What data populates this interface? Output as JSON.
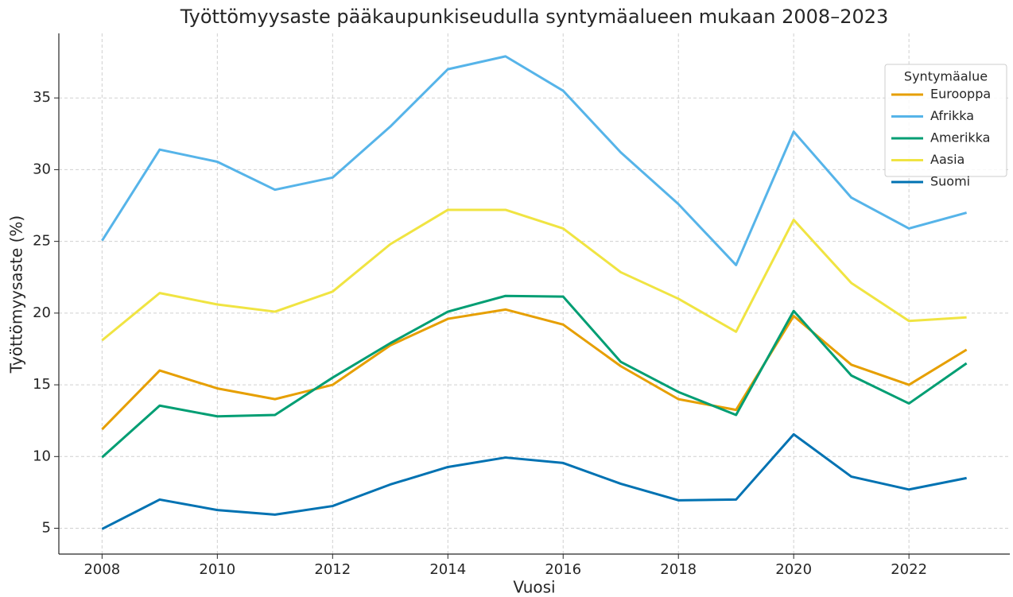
{
  "chart_data": {
    "type": "line",
    "title": "Työttömyysaste pääkaupunkiseudulla syntymäalueen mukaan 2008–2023",
    "x_label": "Vuosi",
    "y_label": "Työttömyysaste (%)",
    "x": [
      2008,
      2009,
      2010,
      2011,
      2012,
      2013,
      2014,
      2015,
      2016,
      2017,
      2018,
      2019,
      2020,
      2021,
      2022,
      2023
    ],
    "series": [
      {
        "name": "Eurooppa",
        "color": "#E69F00",
        "values": [
          11.9,
          16.0,
          14.75,
          14.0,
          15.0,
          17.75,
          19.6,
          20.25,
          19.2,
          16.3,
          14.0,
          13.25,
          19.8,
          16.4,
          15.0,
          17.45
        ]
      },
      {
        "name": "Afrikka",
        "color": "#56B4E9",
        "values": [
          25.05,
          31.4,
          30.55,
          28.6,
          29.45,
          33.0,
          37.0,
          37.9,
          35.5,
          31.2,
          27.6,
          23.35,
          32.65,
          28.05,
          25.9,
          27.0
        ]
      },
      {
        "name": "Amerikka",
        "color": "#009E73",
        "values": [
          9.95,
          13.55,
          12.8,
          12.9,
          15.5,
          17.9,
          20.1,
          21.2,
          21.15,
          16.6,
          14.5,
          12.9,
          20.15,
          15.65,
          13.7,
          16.5
        ]
      },
      {
        "name": "Aasia",
        "color": "#F0E442",
        "values": [
          18.1,
          21.4,
          20.6,
          20.1,
          21.5,
          24.8,
          27.2,
          27.2,
          25.9,
          22.85,
          21.0,
          18.7,
          26.5,
          22.1,
          19.45,
          19.7
        ]
      },
      {
        "name": "Suomi",
        "color": "#0072B2",
        "values": [
          4.95,
          7.0,
          6.27,
          5.95,
          6.55,
          8.05,
          9.27,
          9.93,
          9.55,
          8.1,
          6.95,
          7.0,
          11.55,
          8.6,
          7.7,
          8.5
        ]
      }
    ],
    "legend_title": "Syntymäalue",
    "legend": "upper right",
    "grid": true,
    "xlim": [
      2007.25,
      2023.75
    ],
    "xticks": [
      2008,
      2010,
      2012,
      2014,
      2016,
      2018,
      2020,
      2022
    ],
    "ylim": [
      3.2,
      39.5
    ],
    "yticks": [
      5,
      10,
      15,
      20,
      25,
      30,
      35
    ]
  }
}
